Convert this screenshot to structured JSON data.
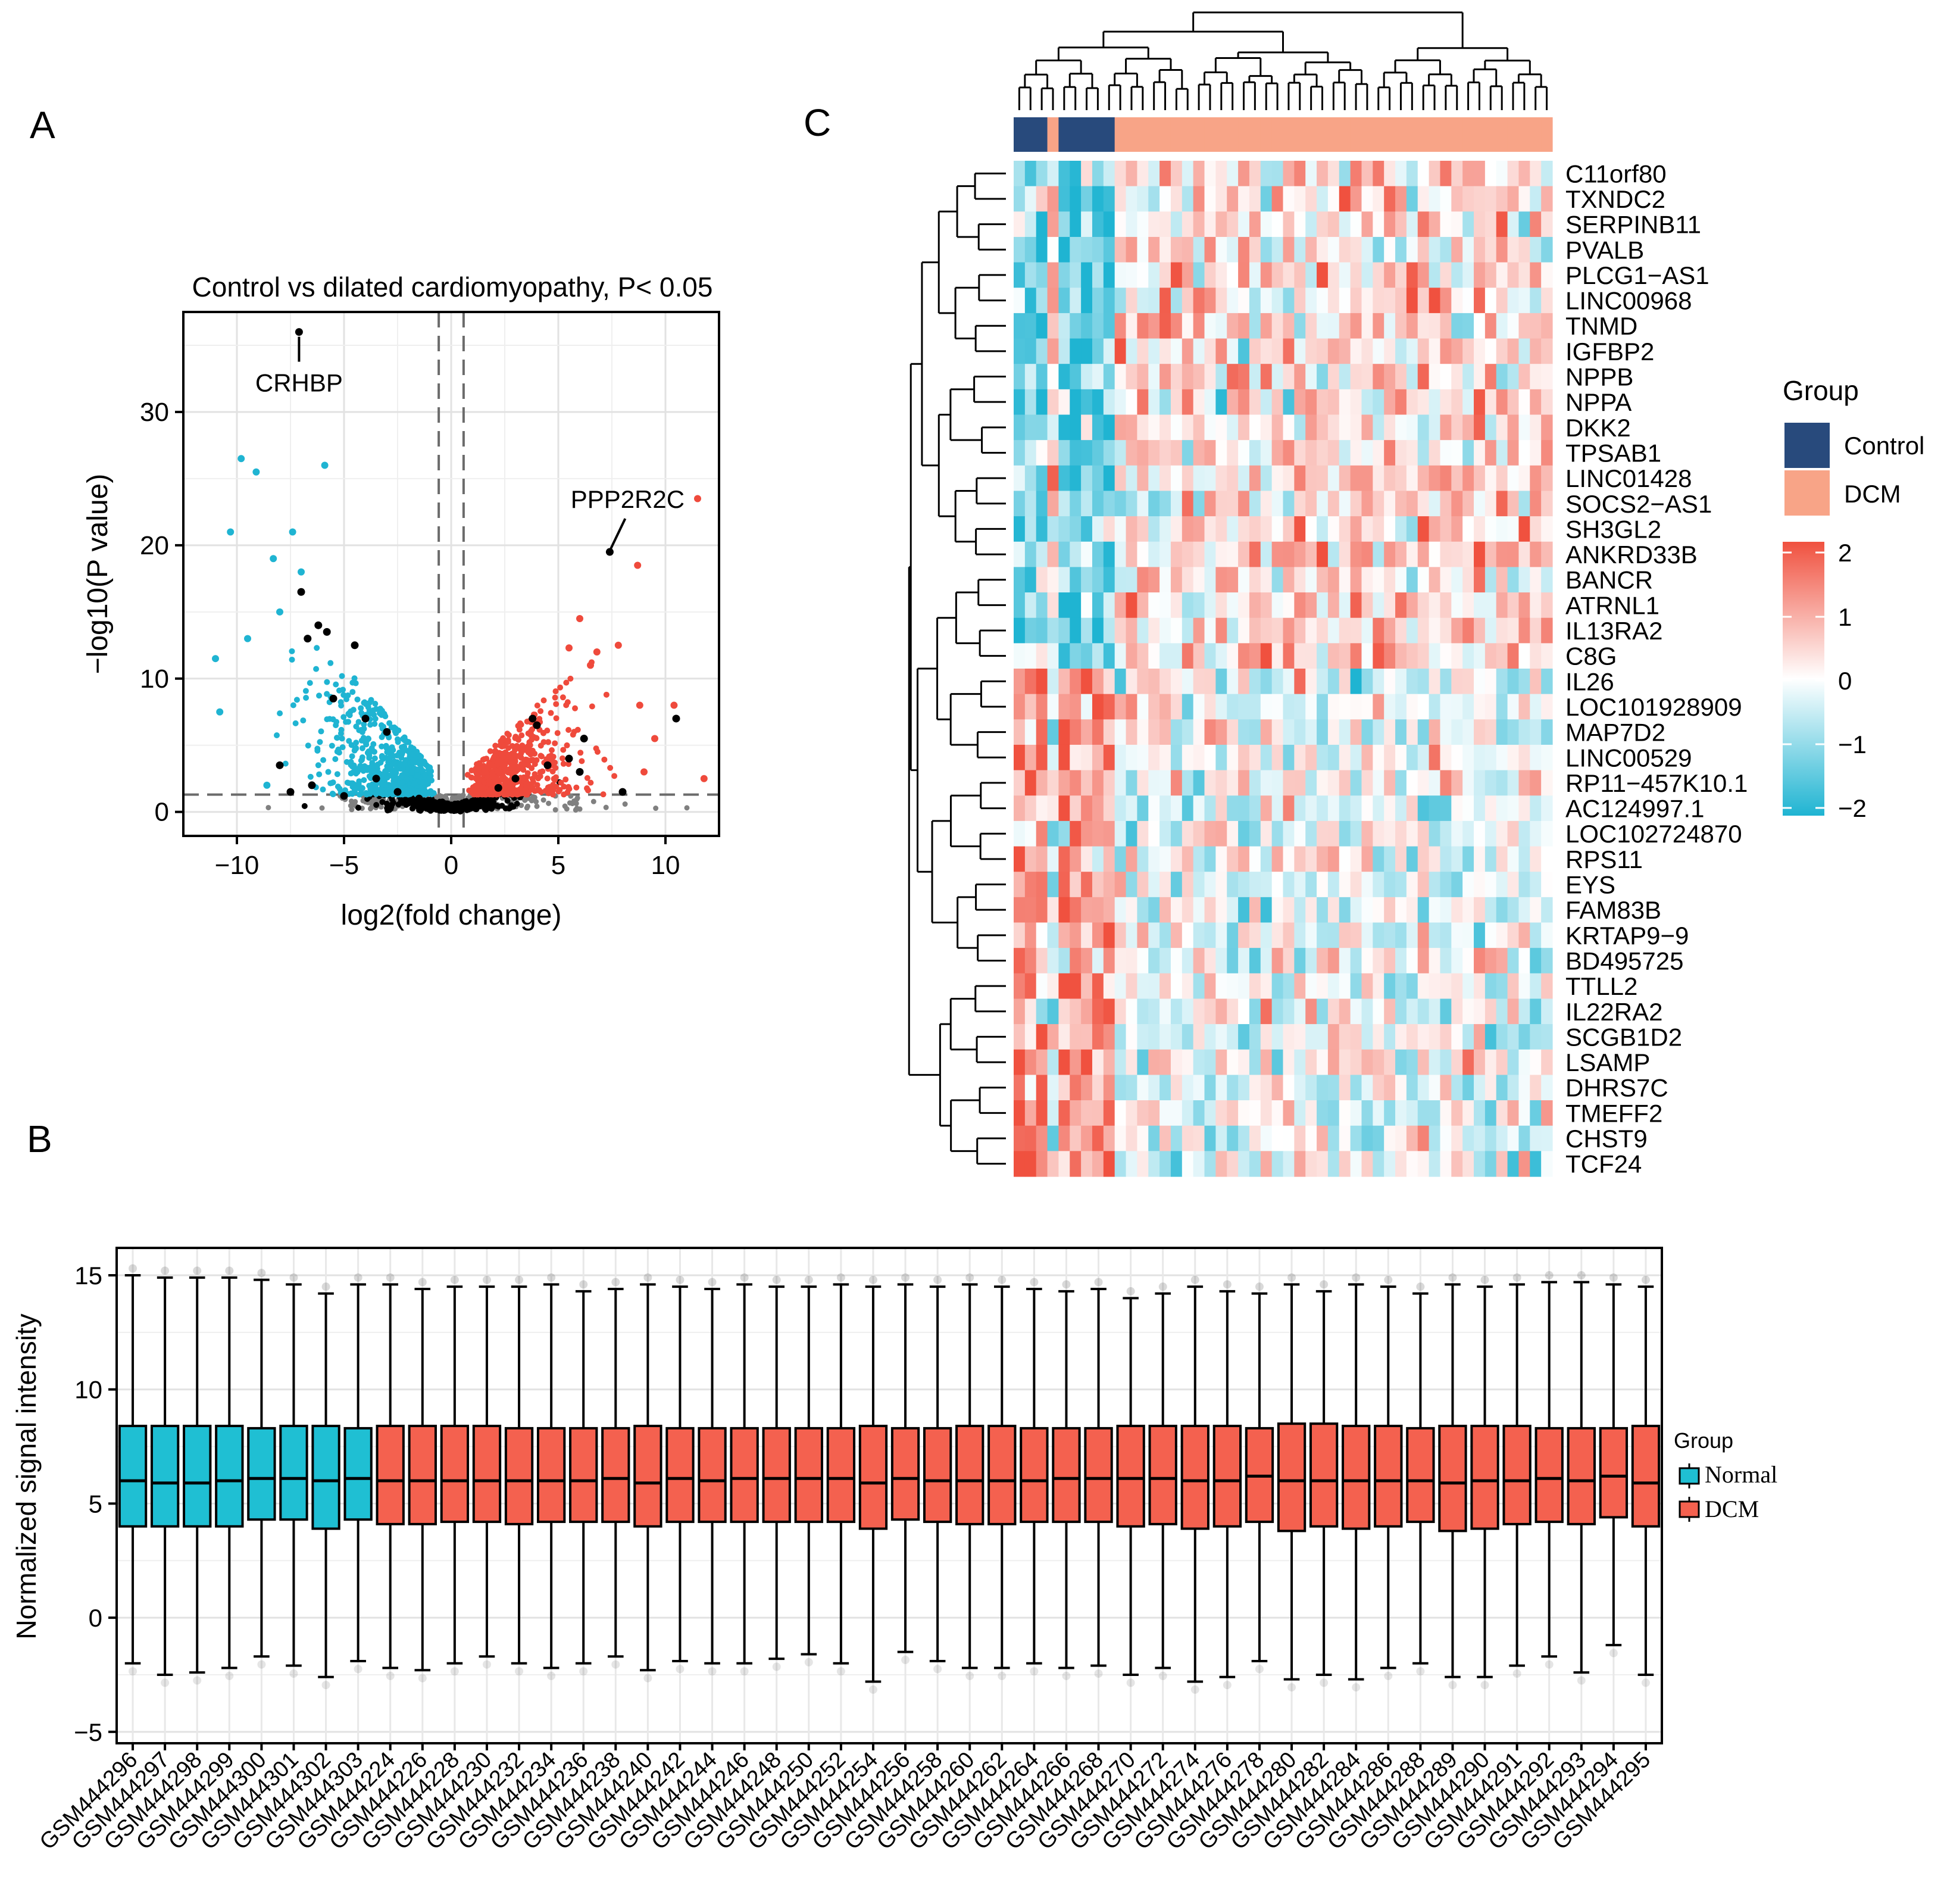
{
  "panel_labels": {
    "a": "A",
    "b": "B",
    "c": "C"
  },
  "colors": {
    "control": "#284a7c",
    "dcm_annot": "#f8a487",
    "cyan": "#1fb4d2",
    "red": "#ef4a3c",
    "gray": "#808080",
    "black": "#000000",
    "box_normal": "#1fbfd3",
    "box_dcm": "#f4614f",
    "heat_low": "#1fb4d2",
    "heat_mid": "#ffffff",
    "heat_high": "#f0513f"
  },
  "chart_data": [
    {
      "id": "A",
      "type": "scatter",
      "title": "Control vs dilated cardiomyopathy, P< 0.05",
      "xlabel": "log2(fold change)",
      "ylabel": "−log10(P value)",
      "xlim": [
        -12.5,
        12.5
      ],
      "ylim": [
        -1.8,
        37.5
      ],
      "xticks": [
        -10,
        -5,
        0,
        5,
        10
      ],
      "xtick_labels": [
        "−10",
        "−5",
        "0",
        "5",
        "10"
      ],
      "yticks": [
        0,
        10,
        20,
        30
      ],
      "ytick_labels": [
        "0",
        "10",
        "20",
        "30"
      ],
      "grid": true,
      "thresholds": {
        "fold_change": [
          -0.58,
          0.58
        ],
        "p_value_line": 1.3
      },
      "annotations": [
        {
          "label": "CRHBP",
          "x": -7.1,
          "y": 36.0
        },
        {
          "label": "PPP2R2C",
          "x": 7.4,
          "y": 19.5
        }
      ],
      "highlight_points": [
        [
          -7.1,
          36.0
        ],
        [
          -7.0,
          16.5
        ],
        [
          -6.2,
          14.0
        ],
        [
          -6.7,
          13.0
        ],
        [
          -5.8,
          13.5
        ],
        [
          -4.5,
          12.5
        ],
        [
          -5.5,
          8.5
        ],
        [
          -4.0,
          7.0
        ],
        [
          -3.0,
          6.0
        ],
        [
          -8.0,
          3.5
        ],
        [
          -7.5,
          1.5
        ],
        [
          -6.5,
          2.0
        ],
        [
          -5.0,
          1.2
        ],
        [
          -3.5,
          2.5
        ],
        [
          -2.5,
          1.5
        ],
        [
          -1.5,
          1.0
        ],
        [
          7.4,
          19.5
        ],
        [
          3.8,
          7.0
        ],
        [
          4.0,
          6.5
        ],
        [
          6.2,
          5.5
        ],
        [
          5.5,
          4.0
        ],
        [
          6.0,
          3.0
        ],
        [
          10.5,
          7.0
        ],
        [
          3.0,
          2.5
        ],
        [
          4.5,
          3.5
        ],
        [
          2.2,
          1.8
        ],
        [
          8.0,
          1.5
        ],
        [
          1.5,
          0.8
        ]
      ],
      "extreme_down": [
        [
          -9.8,
          26.5
        ],
        [
          -9.1,
          25.5
        ],
        [
          -5.9,
          26.0
        ],
        [
          -10.3,
          21.0
        ],
        [
          -7.4,
          21.0
        ],
        [
          -8.3,
          19.0
        ],
        [
          -11.0,
          11.5
        ],
        [
          -9.5,
          13.0
        ],
        [
          -10.8,
          7.5
        ],
        [
          -8.6,
          2.0
        ],
        [
          -7.0,
          18.0
        ],
        [
          -8.0,
          15.0
        ]
      ],
      "extreme_up": [
        [
          11.5,
          23.5
        ],
        [
          8.7,
          18.5
        ],
        [
          6.0,
          14.5
        ],
        [
          10.4,
          8.0
        ],
        [
          11.8,
          2.5
        ],
        [
          9.5,
          5.5
        ],
        [
          8.8,
          8.0
        ],
        [
          9.0,
          3.0
        ],
        [
          7.8,
          12.5
        ],
        [
          6.8,
          12.0
        ],
        [
          5.5,
          12.3
        ],
        [
          6.5,
          11.0
        ]
      ],
      "series": [
        {
          "name": "Down-regulated",
          "color": "#1fb4d2",
          "n": 600
        },
        {
          "name": "Up-regulated",
          "color": "#ef4a3c",
          "n": 560
        },
        {
          "name": "Not significant",
          "color": "#808080",
          "n": 220
        },
        {
          "name": "Black",
          "color": "#000000",
          "n": 360
        }
      ]
    },
    {
      "id": "B",
      "type": "box",
      "ylabel": "Normalized signal intensity",
      "ylim": [
        -5.5,
        16.2
      ],
      "yticks": [
        -5,
        0,
        5,
        10,
        15
      ],
      "ytick_labels": [
        "−5",
        "0",
        "5",
        "10",
        "15"
      ],
      "grid": true,
      "legend": {
        "title": "Group",
        "entries": [
          "Normal",
          "DCM"
        ],
        "position": "right"
      },
      "categories": [
        "GSM444296",
        "GSM444297",
        "GSM444298",
        "GSM444299",
        "GSM444300",
        "GSM444301",
        "GSM444302",
        "GSM444303",
        "GSM444224",
        "GSM444226",
        "GSM444228",
        "GSM444230",
        "GSM444232",
        "GSM444234",
        "GSM444236",
        "GSM444238",
        "GSM444240",
        "GSM444242",
        "GSM444244",
        "GSM444246",
        "GSM444248",
        "GSM444250",
        "GSM444252",
        "GSM444254",
        "GSM444256",
        "GSM444258",
        "GSM444260",
        "GSM444262",
        "GSM444264",
        "GSM444266",
        "GSM444268",
        "GSM444270",
        "GSM444272",
        "GSM444274",
        "GSM444276",
        "GSM444278",
        "GSM444280",
        "GSM444282",
        "GSM444284",
        "GSM444286",
        "GSM444288",
        "GSM444289",
        "GSM444290",
        "GSM444291",
        "GSM444292",
        "GSM444293",
        "GSM444294",
        "GSM444295"
      ],
      "groups": [
        "Normal",
        "Normal",
        "Normal",
        "Normal",
        "Normal",
        "Normal",
        "Normal",
        "Normal",
        "DCM",
        "DCM",
        "DCM",
        "DCM",
        "DCM",
        "DCM",
        "DCM",
        "DCM",
        "DCM",
        "DCM",
        "DCM",
        "DCM",
        "DCM",
        "DCM",
        "DCM",
        "DCM",
        "DCM",
        "DCM",
        "DCM",
        "DCM",
        "DCM",
        "DCM",
        "DCM",
        "DCM",
        "DCM",
        "DCM",
        "DCM",
        "DCM",
        "DCM",
        "DCM",
        "DCM",
        "DCM",
        "DCM",
        "DCM",
        "DCM",
        "DCM",
        "DCM",
        "DCM",
        "DCM",
        "DCM"
      ],
      "medians": [
        6.0,
        5.9,
        5.9,
        6.0,
        6.1,
        6.1,
        6.0,
        6.1,
        6.0,
        6.0,
        6.0,
        6.0,
        6.0,
        6.0,
        6.0,
        6.1,
        5.9,
        6.1,
        6.0,
        6.1,
        6.1,
        6.1,
        6.1,
        5.9,
        6.1,
        6.0,
        6.0,
        6.0,
        6.0,
        6.1,
        6.1,
        6.1,
        6.1,
        6.0,
        6.0,
        6.2,
        6.0,
        6.0,
        6.0,
        6.0,
        6.0,
        5.9,
        6.0,
        6.0,
        6.1,
        6.0,
        6.2,
        5.9
      ],
      "q1": [
        4.0,
        4.0,
        4.0,
        4.0,
        4.3,
        4.3,
        3.9,
        4.3,
        4.1,
        4.1,
        4.2,
        4.2,
        4.1,
        4.2,
        4.2,
        4.2,
        4.0,
        4.2,
        4.2,
        4.2,
        4.2,
        4.2,
        4.2,
        3.9,
        4.3,
        4.2,
        4.1,
        4.1,
        4.2,
        4.2,
        4.2,
        4.0,
        4.1,
        3.9,
        4.0,
        4.2,
        3.8,
        4.0,
        3.9,
        4.0,
        4.2,
        3.8,
        3.9,
        4.1,
        4.2,
        4.1,
        4.4,
        4.0
      ],
      "q3": [
        8.4,
        8.4,
        8.4,
        8.4,
        8.3,
        8.4,
        8.4,
        8.3,
        8.4,
        8.4,
        8.4,
        8.4,
        8.3,
        8.3,
        8.3,
        8.3,
        8.4,
        8.3,
        8.3,
        8.3,
        8.3,
        8.3,
        8.3,
        8.4,
        8.3,
        8.3,
        8.4,
        8.4,
        8.3,
        8.3,
        8.3,
        8.4,
        8.4,
        8.4,
        8.4,
        8.3,
        8.5,
        8.5,
        8.4,
        8.4,
        8.3,
        8.4,
        8.4,
        8.4,
        8.3,
        8.3,
        8.3,
        8.4
      ],
      "whisker_low": [
        -2.0,
        -2.5,
        -2.4,
        -2.2,
        -1.7,
        -2.1,
        -2.6,
        -1.9,
        -2.2,
        -2.3,
        -2.0,
        -1.7,
        -2.0,
        -2.2,
        -2.0,
        -1.7,
        -2.3,
        -1.9,
        -2.0,
        -2.0,
        -1.8,
        -1.6,
        -2.0,
        -2.8,
        -1.5,
        -1.9,
        -2.2,
        -2.2,
        -2.0,
        -2.2,
        -2.1,
        -2.5,
        -2.2,
        -2.8,
        -2.6,
        -1.9,
        -2.7,
        -2.5,
        -2.7,
        -2.2,
        -2.0,
        -2.6,
        -2.6,
        -2.1,
        -1.7,
        -2.4,
        -1.2,
        -2.5
      ],
      "whisker_high": [
        15.0,
        14.9,
        14.9,
        14.9,
        14.8,
        14.6,
        14.2,
        14.6,
        14.6,
        14.4,
        14.5,
        14.5,
        14.5,
        14.6,
        14.3,
        14.4,
        14.6,
        14.5,
        14.4,
        14.6,
        14.5,
        14.5,
        14.6,
        14.5,
        14.6,
        14.5,
        14.6,
        14.5,
        14.4,
        14.3,
        14.4,
        14.0,
        14.2,
        14.5,
        14.3,
        14.2,
        14.6,
        14.3,
        14.6,
        14.5,
        14.2,
        14.6,
        14.5,
        14.6,
        14.7,
        14.7,
        14.6,
        14.5
      ]
    },
    {
      "id": "C",
      "type": "heatmap",
      "genes": [
        "C11orf80",
        "TXNDC2",
        "SERPINB11",
        "PVALB",
        "PLCG1−AS1",
        "LINC00968",
        "TNMD",
        "IGFBP2",
        "NPPB",
        "NPPA",
        "DKK2",
        "TPSAB1",
        "LINC01428",
        "SOCS2−AS1",
        "SH3GL2",
        "ANKRD33B",
        "BANCR",
        "ATRNL1",
        "IL13RA2",
        "C8G",
        "IL26",
        "LOC101928909",
        "MAP7D2",
        "LINC00529",
        "RP11−457K10.1",
        "AC124997.1",
        "LOC102724870",
        "RPS11",
        "EYS",
        "FAM83B",
        "KRTAP9−9",
        "BD495725",
        "TTLL2",
        "IL22RA2",
        "SCGB1D2",
        "LSAMP",
        "DHRS7C",
        "TMEFF2",
        "CHST9",
        "TCF24"
      ],
      "gene_directions": [
        "up",
        "up",
        "up",
        "up",
        "up",
        "up",
        "up",
        "up",
        "up",
        "up",
        "up",
        "up",
        "up",
        "up",
        "up",
        "up",
        "up",
        "up",
        "up",
        "up",
        "down",
        "down",
        "down",
        "down",
        "down",
        "down",
        "down",
        "down",
        "down",
        "down",
        "down",
        "down",
        "down",
        "down",
        "down",
        "down",
        "down",
        "down",
        "down",
        "down"
      ],
      "sample_groups": [
        "Control",
        "Control",
        "Control",
        "DCM",
        "Control",
        "Control",
        "Control",
        "Control",
        "Control",
        "DCM",
        "DCM",
        "DCM",
        "DCM",
        "DCM",
        "DCM",
        "DCM",
        "DCM",
        "DCM",
        "DCM",
        "DCM",
        "DCM",
        "DCM",
        "DCM",
        "DCM",
        "DCM",
        "DCM",
        "DCM",
        "DCM",
        "DCM",
        "DCM",
        "DCM",
        "DCM",
        "DCM",
        "DCM",
        "DCM",
        "DCM",
        "DCM",
        "DCM",
        "DCM",
        "DCM",
        "DCM",
        "DCM",
        "DCM",
        "DCM",
        "DCM",
        "DCM",
        "DCM",
        "DCM"
      ],
      "color_scale": {
        "min": -2,
        "max": 2,
        "ticks": [
          "2",
          "1",
          "0",
          "−1",
          "−2"
        ]
      },
      "legend": {
        "title": "Group",
        "entries": [
          "Control",
          "DCM"
        ]
      }
    }
  ]
}
